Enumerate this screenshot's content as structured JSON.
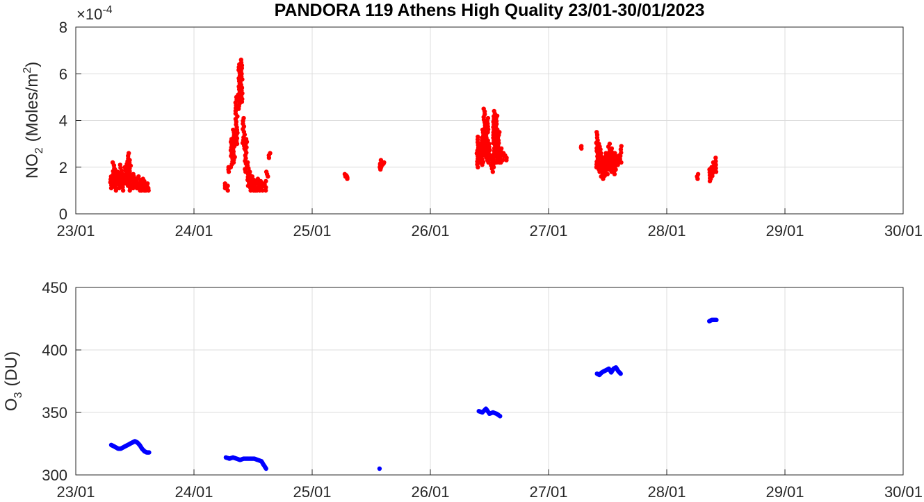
{
  "title": "PANDORA 119 Athens High Quality 23/01-30/01/2023",
  "chart_data": [
    {
      "type": "scatter",
      "name": "no2",
      "ylabel_main": "NO",
      "ylabel_sub": "2",
      "ylabel_unit_pre": "(Moles/m",
      "ylabel_unit_sup": "2",
      "ylabel_unit_post": ")",
      "exponent_prefix": "×10",
      "exponent": "-4",
      "color": "#ff0000",
      "xlim": [
        0,
        7
      ],
      "ylim": [
        0,
        8
      ],
      "yticks": [
        0,
        2,
        4,
        6,
        8
      ],
      "xtick_labels": [
        "23/01",
        "24/01",
        "25/01",
        "26/01",
        "27/01",
        "28/01",
        "29/01",
        "30/01"
      ],
      "grid": true,
      "units_note": "y values in units of 1e-4 Moles/m2; x in days since 23/01/2023 00:00",
      "clusters": [
        {
          "x_start": 0.3,
          "x_end": 0.62,
          "ranges": [
            [
              0.3,
              1.1,
              1.6
            ],
            [
              0.32,
              1.2,
              2.2
            ],
            [
              0.34,
              1.0,
              1.9
            ],
            [
              0.36,
              1.1,
              1.8
            ],
            [
              0.38,
              1.2,
              2.1
            ],
            [
              0.4,
              1.0,
              1.7
            ],
            [
              0.42,
              1.3,
              2.0
            ],
            [
              0.44,
              1.2,
              2.6
            ],
            [
              0.46,
              1.0,
              2.3
            ],
            [
              0.48,
              1.1,
              1.7
            ],
            [
              0.5,
              1.2,
              1.6
            ],
            [
              0.52,
              1.1,
              1.5
            ],
            [
              0.54,
              1.0,
              1.6
            ],
            [
              0.56,
              1.0,
              1.5
            ],
            [
              0.58,
              1.0,
              1.4
            ],
            [
              0.6,
              1.0,
              1.3
            ],
            [
              0.62,
              1.0,
              1.1
            ]
          ]
        },
        {
          "x_start": 0.26,
          "x_end": 0.65,
          "ranges": [
            [
              1.26,
              1.1,
              1.3
            ],
            [
              1.28,
              1.0,
              1.2
            ],
            [
              1.3,
              1.8,
              2.0
            ],
            [
              1.32,
              2.0,
              3.2
            ],
            [
              1.34,
              2.2,
              3.6
            ],
            [
              1.36,
              3.0,
              5.0
            ],
            [
              1.38,
              4.5,
              6.4
            ],
            [
              1.4,
              4.8,
              6.6
            ],
            [
              1.42,
              2.8,
              4.1
            ],
            [
              1.44,
              1.8,
              3.2
            ],
            [
              1.46,
              1.2,
              2.2
            ],
            [
              1.48,
              1.0,
              1.8
            ],
            [
              1.5,
              1.0,
              1.6
            ],
            [
              1.52,
              1.0,
              1.4
            ],
            [
              1.54,
              1.0,
              1.5
            ],
            [
              1.56,
              1.0,
              1.4
            ],
            [
              1.58,
              1.0,
              1.3
            ],
            [
              1.6,
              1.0,
              1.4
            ],
            [
              1.62,
              1.6,
              1.8
            ],
            [
              1.64,
              2.4,
              2.6
            ]
          ]
        },
        {
          "x_start": 2.28,
          "x_end": 2.6,
          "ranges": [
            [
              2.28,
              1.6,
              1.7
            ],
            [
              2.3,
              1.5,
              1.6
            ],
            [
              2.57,
              1.9,
              2.1
            ],
            [
              2.58,
              2.0,
              2.3
            ],
            [
              2.6,
              2.1,
              2.2
            ]
          ]
        },
        {
          "x_start": 3.4,
          "x_end": 3.65,
          "ranges": [
            [
              3.4,
              2.0,
              3.3
            ],
            [
              3.42,
              2.2,
              3.0
            ],
            [
              3.44,
              2.1,
              3.6
            ],
            [
              3.46,
              2.5,
              4.5
            ],
            [
              3.48,
              2.3,
              4.1
            ],
            [
              3.5,
              2.2,
              3.0
            ],
            [
              3.52,
              1.8,
              2.5
            ],
            [
              3.54,
              2.0,
              4.4
            ],
            [
              3.56,
              2.2,
              4.2
            ],
            [
              3.58,
              2.2,
              3.5
            ],
            [
              3.6,
              2.2,
              2.8
            ],
            [
              3.62,
              2.3,
              2.6
            ],
            [
              3.64,
              2.3,
              2.5
            ]
          ]
        },
        {
          "x_start": 4.27,
          "x_end": 4.62,
          "ranges": [
            [
              4.27,
              2.8,
              2.9
            ],
            [
              4.41,
              2.0,
              3.5
            ],
            [
              4.43,
              1.8,
              3.0
            ],
            [
              4.45,
              1.6,
              2.6
            ],
            [
              4.47,
              1.5,
              2.4
            ],
            [
              4.49,
              1.7,
              2.6
            ],
            [
              4.51,
              1.9,
              3.0
            ],
            [
              4.53,
              1.8,
              2.8
            ],
            [
              4.55,
              1.7,
              2.6
            ],
            [
              4.57,
              1.9,
              2.6
            ],
            [
              4.59,
              2.1,
              2.5
            ],
            [
              4.61,
              2.2,
              2.9
            ]
          ]
        },
        {
          "x_start": 5.26,
          "x_end": 5.42,
          "ranges": [
            [
              5.26,
              1.5,
              1.7
            ],
            [
              5.36,
              1.4,
              1.9
            ],
            [
              5.38,
              1.5,
              2.0
            ],
            [
              5.4,
              1.9,
              2.2
            ],
            [
              5.42,
              1.8,
              2.4
            ]
          ]
        }
      ]
    },
    {
      "type": "scatter",
      "name": "o3",
      "ylabel_main": "O",
      "ylabel_sub": "3",
      "ylabel_unit_pre": "(DU)",
      "color": "#0000ff",
      "xlim": [
        0,
        7
      ],
      "ylim": [
        300,
        450
      ],
      "yticks": [
        300,
        350,
        400,
        450
      ],
      "xtick_labels": [
        "23/01",
        "24/01",
        "25/01",
        "26/01",
        "27/01",
        "28/01",
        "29/01",
        "30/01"
      ],
      "grid": true,
      "segments": [
        [
          [
            0.3,
            324
          ],
          [
            0.32,
            323
          ],
          [
            0.34,
            322
          ],
          [
            0.36,
            321
          ],
          [
            0.38,
            321
          ],
          [
            0.4,
            322
          ],
          [
            0.42,
            323
          ],
          [
            0.44,
            324
          ],
          [
            0.46,
            325
          ],
          [
            0.48,
            326
          ],
          [
            0.5,
            327
          ],
          [
            0.52,
            326
          ],
          [
            0.54,
            324
          ],
          [
            0.56,
            321
          ],
          [
            0.58,
            319
          ],
          [
            0.6,
            318
          ],
          [
            0.62,
            318
          ]
        ],
        [
          [
            1.27,
            314
          ],
          [
            1.3,
            313
          ],
          [
            1.33,
            314
          ],
          [
            1.36,
            313
          ],
          [
            1.39,
            312
          ],
          [
            1.42,
            313
          ],
          [
            1.45,
            313
          ],
          [
            1.48,
            313
          ],
          [
            1.51,
            313
          ],
          [
            1.54,
            312
          ],
          [
            1.57,
            311
          ],
          [
            1.59,
            308
          ],
          [
            1.61,
            305
          ]
        ],
        [
          [
            2.57,
            305
          ]
        ],
        [
          [
            3.41,
            351
          ],
          [
            3.44,
            350
          ],
          [
            3.47,
            353
          ],
          [
            3.5,
            349
          ],
          [
            3.53,
            350
          ],
          [
            3.56,
            349
          ],
          [
            3.59,
            347
          ]
        ],
        [
          [
            4.41,
            381
          ],
          [
            4.43,
            380
          ],
          [
            4.45,
            382
          ],
          [
            4.47,
            383
          ],
          [
            4.49,
            384
          ],
          [
            4.51,
            385
          ],
          [
            4.53,
            382
          ],
          [
            4.55,
            385
          ],
          [
            4.57,
            386
          ],
          [
            4.59,
            383
          ],
          [
            4.61,
            381
          ]
        ],
        [
          [
            5.36,
            423
          ],
          [
            5.38,
            424
          ],
          [
            5.4,
            424
          ],
          [
            5.42,
            424
          ]
        ]
      ]
    }
  ]
}
